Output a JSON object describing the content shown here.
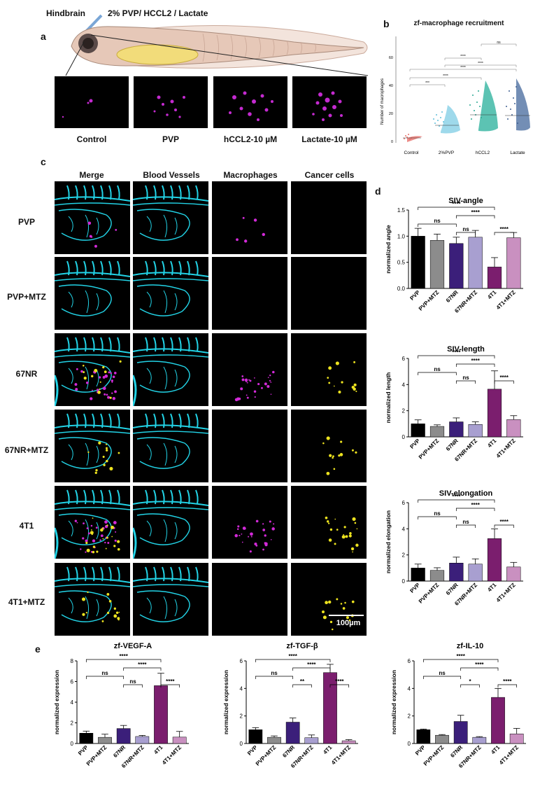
{
  "panel_a": {
    "letter": "a",
    "top_label_left": "Hindbrain",
    "top_label_right": "2% PVP/ HCCL2 / Lactate",
    "images": [
      "Control",
      "PVP",
      "hCCL2-10 µM",
      "Lactate-10 µM"
    ]
  },
  "panel_b": {
    "letter": "b",
    "title": "zf-macrophage recruitment",
    "ylabel": "Number of macrophages",
    "yticks": [
      "0",
      "20",
      "40",
      "60"
    ],
    "groups": [
      "Control",
      "2%PVP",
      "hCCL2",
      "Lactate"
    ],
    "sig": [
      "***",
      "****",
      "****",
      "****",
      "****",
      "ns"
    ],
    "colors": [
      "#e76f6a",
      "#86cfe6",
      "#3fb8a6",
      "#5b7aa8"
    ]
  },
  "panel_c": {
    "letter": "c",
    "columns": [
      "Merge",
      "Blood Vessels",
      "Macrophages",
      "Cancer cells"
    ],
    "rows": [
      "PVP",
      "PVP+MTZ",
      "67NR",
      "67NR+MTZ",
      "4T1",
      "4T1+MTZ"
    ],
    "scale_bar": "100µm"
  },
  "panel_d": {
    "letter": "d"
  },
  "panel_e": {
    "letter": "e"
  },
  "chart_data": [
    {
      "type": "bar",
      "id": "siv-angle",
      "title": "SIV-angle",
      "ylabel": "normalized angle",
      "categories": [
        "PVP",
        "PVP+MTZ",
        "67NR",
        "67NR+MTZ",
        "4T1",
        "4T1+MTZ"
      ],
      "values": [
        1.0,
        0.92,
        0.86,
        0.98,
        0.41,
        0.97
      ],
      "errors": [
        0.15,
        0.12,
        0.12,
        0.13,
        0.18,
        0.1
      ],
      "ylim": [
        0,
        1.5
      ],
      "yticks": [
        "0.0",
        "0.5",
        "1.0",
        "1.5"
      ],
      "brackets": [
        {
          "from": 0,
          "to": 4,
          "label": "****",
          "level": 3
        },
        {
          "from": 0,
          "to": 2,
          "label": "ns",
          "level": 1
        },
        {
          "from": 2,
          "to": 4,
          "label": "****",
          "level": 2
        },
        {
          "from": 2,
          "to": 3,
          "label": "ns",
          "level": 0
        },
        {
          "from": 4,
          "to": 5,
          "label": "****",
          "level": 0
        }
      ]
    },
    {
      "type": "bar",
      "id": "siv-length",
      "title": "SIV-length",
      "ylabel": "normalized length",
      "categories": [
        "PVP",
        "PVP+MTZ",
        "67NR",
        "67NR+MTZ",
        "4T1",
        "4T1+MTZ"
      ],
      "values": [
        1.0,
        0.8,
        1.15,
        0.95,
        3.65,
        1.32
      ],
      "errors": [
        0.3,
        0.12,
        0.3,
        0.2,
        1.4,
        0.3
      ],
      "ylim": [
        0,
        6
      ],
      "yticks": [
        "0",
        "2",
        "4",
        "6"
      ],
      "brackets": [
        {
          "from": 0,
          "to": 4,
          "label": "****",
          "level": 3
        },
        {
          "from": 0,
          "to": 2,
          "label": "ns",
          "level": 1
        },
        {
          "from": 2,
          "to": 4,
          "label": "****",
          "level": 2
        },
        {
          "from": 2,
          "to": 3,
          "label": "ns",
          "level": 0
        },
        {
          "from": 4,
          "to": 5,
          "label": "****",
          "level": 0
        }
      ]
    },
    {
      "type": "bar",
      "id": "siv-elongation",
      "title": "SIV-elongation",
      "ylabel": "normalized elongation",
      "categories": [
        "PVP",
        "PVP+MTZ",
        "67NR",
        "67NR+MTZ",
        "4T1",
        "4T1+MTZ"
      ],
      "values": [
        1.0,
        0.82,
        1.38,
        1.3,
        3.25,
        1.08
      ],
      "errors": [
        0.3,
        0.2,
        0.45,
        0.4,
        0.75,
        0.35
      ],
      "ylim": [
        0,
        6
      ],
      "yticks": [
        "0",
        "2",
        "4",
        "6"
      ],
      "brackets": [
        {
          "from": 0,
          "to": 4,
          "label": "****",
          "level": 3
        },
        {
          "from": 0,
          "to": 2,
          "label": "ns",
          "level": 1
        },
        {
          "from": 2,
          "to": 4,
          "label": "****",
          "level": 2
        },
        {
          "from": 2,
          "to": 3,
          "label": "ns",
          "level": 0
        },
        {
          "from": 4,
          "to": 5,
          "label": "****",
          "level": 0
        }
      ]
    },
    {
      "type": "bar",
      "id": "zf-vegf-a",
      "title": "zf-VEGF-A",
      "ylabel": "normalized expression",
      "categories": [
        "PVP",
        "PVP+MTZ",
        "67NR",
        "67NR+MTZ",
        "4T1",
        "4T1+MTZ"
      ],
      "values": [
        1.0,
        0.6,
        1.45,
        0.68,
        5.6,
        0.62
      ],
      "errors": [
        0.2,
        0.3,
        0.3,
        0.1,
        1.2,
        0.55
      ],
      "ylim": [
        0,
        8
      ],
      "yticks": [
        "0",
        "2",
        "4",
        "6",
        "8"
      ],
      "brackets": [
        {
          "from": 0,
          "to": 4,
          "label": "****",
          "level": 3
        },
        {
          "from": 0,
          "to": 2,
          "label": "ns",
          "level": 1
        },
        {
          "from": 2,
          "to": 4,
          "label": "****",
          "level": 2
        },
        {
          "from": 2,
          "to": 3,
          "label": "ns",
          "level": 0
        },
        {
          "from": 4,
          "to": 5,
          "label": "****",
          "level": 0
        }
      ]
    },
    {
      "type": "bar",
      "id": "zf-tgf-b",
      "title": "zf-TGF-β",
      "ylabel": "normalized expression",
      "categories": [
        "PVP",
        "PVP+MTZ",
        "67NR",
        "67NR+MTZ",
        "4T1",
        "4T1+MTZ"
      ],
      "values": [
        1.0,
        0.45,
        1.55,
        0.42,
        5.15,
        0.2
      ],
      "errors": [
        0.15,
        0.1,
        0.3,
        0.2,
        0.6,
        0.08
      ],
      "ylim": [
        0,
        6
      ],
      "yticks": [
        "0",
        "2",
        "4",
        "6"
      ],
      "brackets": [
        {
          "from": 0,
          "to": 4,
          "label": "****",
          "level": 3
        },
        {
          "from": 0,
          "to": 2,
          "label": "ns",
          "level": 1
        },
        {
          "from": 2,
          "to": 4,
          "label": "****",
          "level": 2
        },
        {
          "from": 2,
          "to": 3,
          "label": "**",
          "level": 0
        },
        {
          "from": 4,
          "to": 5,
          "label": "****",
          "level": 0
        }
      ]
    },
    {
      "type": "bar",
      "id": "zf-il-10",
      "title": "zf-IL-10",
      "ylabel": "normalized expression",
      "categories": [
        "PVP",
        "PVP+MTZ",
        "67NR",
        "67NR+MTZ",
        "4T1",
        "4T1+MTZ"
      ],
      "values": [
        1.0,
        0.6,
        1.6,
        0.45,
        3.35,
        0.7
      ],
      "errors": [
        0.05,
        0.05,
        0.45,
        0.05,
        0.65,
        0.4
      ],
      "ylim": [
        0,
        6
      ],
      "yticks": [
        "0",
        "2",
        "4",
        "6"
      ],
      "brackets": [
        {
          "from": 0,
          "to": 4,
          "label": "****",
          "level": 3
        },
        {
          "from": 0,
          "to": 2,
          "label": "ns",
          "level": 1
        },
        {
          "from": 2,
          "to": 4,
          "label": "****",
          "level": 2
        },
        {
          "from": 2,
          "to": 3,
          "label": "*",
          "level": 0
        },
        {
          "from": 4,
          "to": 5,
          "label": "****",
          "level": 0
        }
      ]
    }
  ],
  "bar_colors": [
    "#000000",
    "#8c8c8c",
    "#3b1f7a",
    "#a89fd0",
    "#7b1e6e",
    "#c990c0"
  ]
}
